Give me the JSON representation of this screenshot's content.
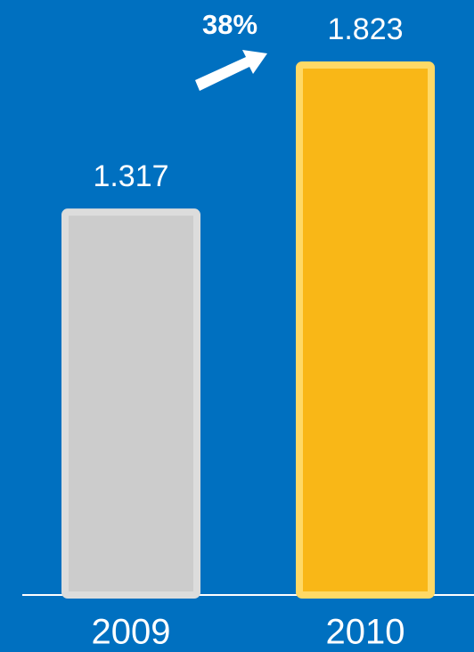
{
  "chart_data": {
    "type": "bar",
    "categories": [
      "2009",
      "2010"
    ],
    "values": [
      1.317,
      1.823
    ],
    "colors": [
      "#cccccc",
      "#f9b717"
    ],
    "annotation": "38%"
  }
}
